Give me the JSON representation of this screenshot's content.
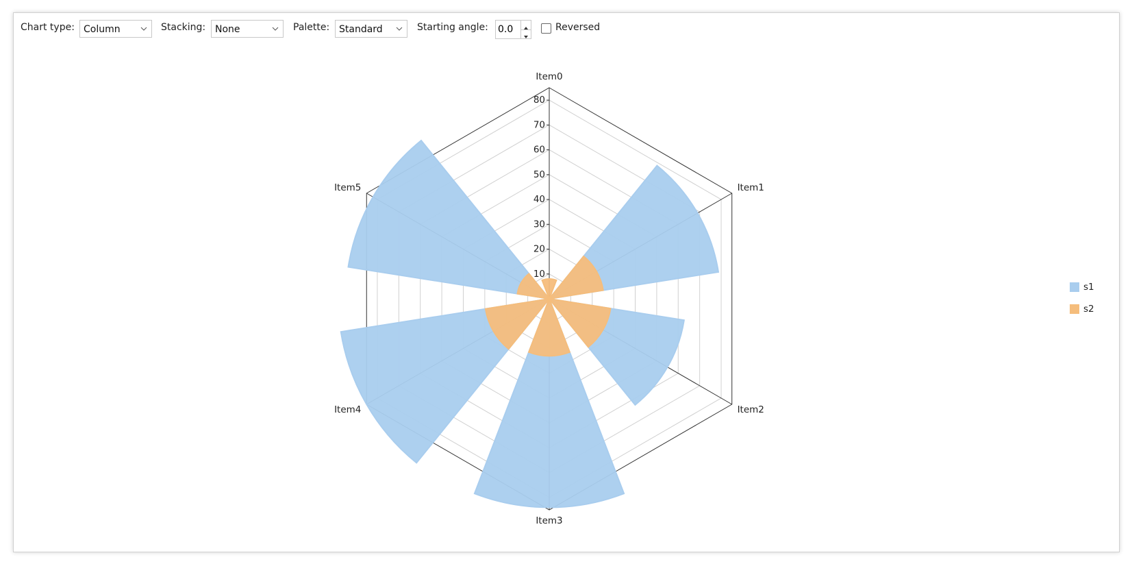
{
  "toolbar": {
    "chart_type_label": "Chart type:",
    "chart_type": "Column",
    "stacking_label": "Stacking:",
    "stacking": "None",
    "palette_label": "Palette:",
    "palette": "Standard",
    "starting_angle_label": "Starting angle:",
    "starting_angle": "0.0",
    "reversed_label": "Reversed"
  },
  "chart_data": {
    "type": "radar-column",
    "categories": [
      "Item0",
      "Item1",
      "Item2",
      "Item3",
      "Item4",
      "Item5"
    ],
    "series": [
      {
        "name": "s1",
        "color": "#a9cdee",
        "values": [
          0,
          69,
          55,
          84,
          85,
          82
        ]
      },
      {
        "name": "s2",
        "color": "#f5bd7c",
        "values": [
          8,
          22,
          25,
          23,
          26,
          13
        ]
      }
    ],
    "ylim": [
      0,
      85
    ],
    "yticks": [
      10,
      20,
      30,
      40,
      50,
      60,
      70,
      80
    ],
    "grid": true,
    "legend": "right"
  }
}
